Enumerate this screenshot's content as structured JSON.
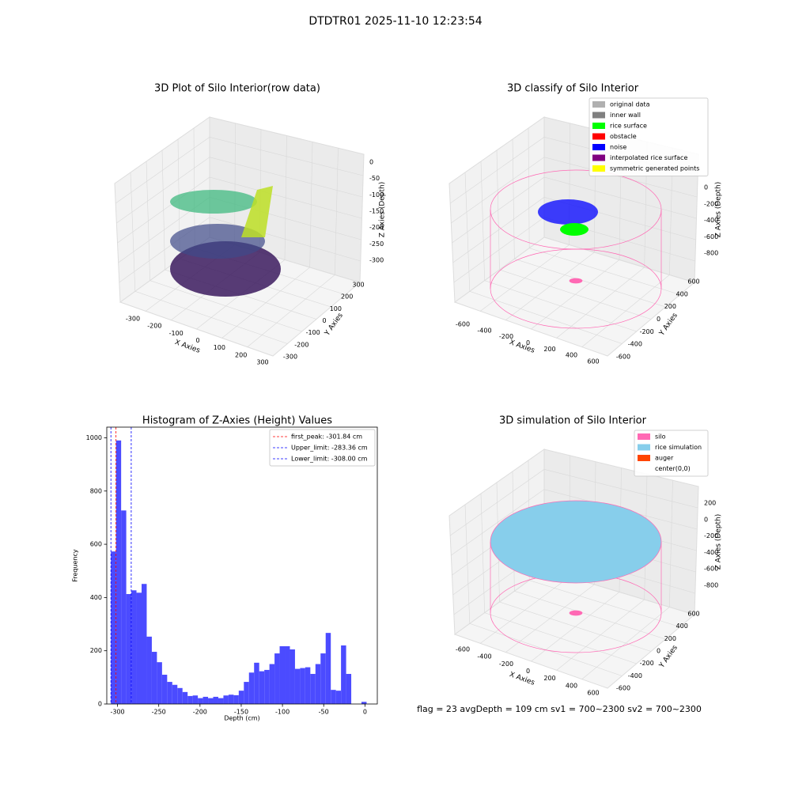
{
  "suptitle": "DTDTR01 2025-11-10 12:23:54",
  "footer": "flag = 23  avgDepth = 109 cm  sv1 = 700~2300  sv2 = 700~2300",
  "chart_data": [
    {
      "type": "scatter3d",
      "title": "3D Plot of Silo Interior(row data)",
      "xlabel": "X Axies",
      "ylabel": "Y Axies",
      "zlabel": "Z Axies (Depth)",
      "xticks": [
        -300,
        -200,
        -100,
        0,
        100,
        200,
        300
      ],
      "yticks": [
        -300,
        -200,
        -100,
        0,
        100,
        200,
        300
      ],
      "zticks": [
        0,
        -50,
        -100,
        -150,
        -200,
        -250,
        -300
      ]
    },
    {
      "type": "scatter3d",
      "title": "3D classify of Silo Interior",
      "xlabel": "X Axies",
      "ylabel": "Y Axies",
      "zlabel": "Z Axies (Depth)",
      "xticks": [
        -600,
        -400,
        -200,
        0,
        200,
        400,
        600
      ],
      "yticks": [
        -600,
        -400,
        -200,
        0,
        200,
        400,
        600
      ],
      "zticks": [
        0,
        -200,
        -400,
        -600,
        -800
      ],
      "legend": [
        {
          "name": "original data",
          "color": "#b0b0b0"
        },
        {
          "name": "inner wall",
          "color": "#808080"
        },
        {
          "name": "rice surface",
          "color": "#00ff00"
        },
        {
          "name": "obstacle",
          "color": "#ff0000"
        },
        {
          "name": "noise",
          "color": "#0000ff"
        },
        {
          "name": "interpolated rice surface",
          "color": "#800080"
        },
        {
          "name": "symmetric generated points",
          "color": "#ffff00"
        }
      ]
    },
    {
      "type": "histogram",
      "title": "Histogram of Z-Axies (Height) Values",
      "xlabel": "Depth (cm)",
      "ylabel": "Frequency",
      "color": "#4b4bff",
      "bins": [
        -308,
        -301.8,
        -295.6,
        -289.4,
        -283.2,
        -277,
        -270.8,
        -264.6,
        -258.4,
        -252.2,
        -246,
        -239.8,
        -233.6,
        -227.4,
        -221.2,
        -215,
        -208.8,
        -202.6,
        -196.4,
        -190.2,
        -184,
        -177.8,
        -171.6,
        -165.4,
        -159.2,
        -153,
        -146.8,
        -140.6,
        -134.4,
        -128.2,
        -122,
        -115.8,
        -109.6,
        -103.4,
        -97.2,
        -91,
        -84.8,
        -78.6,
        -72.4,
        -66.2,
        -60,
        -53.8,
        -47.6,
        -41.4,
        -35.2,
        -29,
        -22.8,
        -16.6,
        -10.4,
        -4.2,
        2
      ],
      "values": [
        573,
        990,
        727,
        413,
        427,
        418,
        451,
        253,
        196,
        157,
        110,
        83,
        72,
        60,
        45,
        30,
        32,
        22,
        27,
        22,
        27,
        22,
        32,
        35,
        33,
        50,
        83,
        118,
        155,
        123,
        128,
        150,
        190,
        217,
        217,
        205,
        132,
        135,
        138,
        113,
        150,
        190,
        267,
        53,
        50,
        220,
        113,
        0,
        0,
        8
      ],
      "vlines": [
        {
          "name": "first_peak: -301.84 cm",
          "value": -301.84,
          "color": "#ff0000"
        },
        {
          "name": "Upper_limit: -283.36 cm",
          "value": -283.36,
          "color": "#0000ff"
        },
        {
          "name": "Lower_limit: -308.00 cm",
          "value": -308,
          "color": "#0000ff"
        }
      ],
      "xlim": [
        -313,
        15
      ],
      "ylim": [
        0,
        1040
      ],
      "xticks": [
        -300,
        -250,
        -200,
        -150,
        -100,
        -50,
        0
      ],
      "yticks": [
        0,
        200,
        400,
        600,
        800,
        1000
      ],
      "legend": "upper right"
    },
    {
      "type": "surface3d",
      "title": "3D simulation of Silo Interior",
      "xlabel": "X Axies",
      "ylabel": "Y Axies",
      "zlabel": "Z Axies (Depth)",
      "xticks": [
        -600,
        -400,
        -200,
        0,
        200,
        400,
        600
      ],
      "yticks": [
        -600,
        -400,
        -200,
        0,
        200,
        400,
        600
      ],
      "zticks": [
        200,
        0,
        -200,
        -400,
        -600,
        -800
      ],
      "legend": [
        {
          "name": "silo",
          "color": "#ff69b4"
        },
        {
          "name": "rice simulation",
          "color": "#87ceeb"
        },
        {
          "name": "auger",
          "color": "#ff4500"
        },
        {
          "name": "center(0,0)",
          "color": "#ffffff"
        }
      ]
    }
  ]
}
